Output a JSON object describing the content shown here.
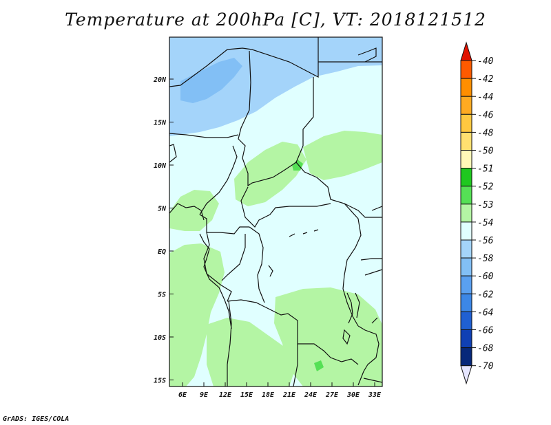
{
  "title": "Temperature at 200hPa [C], VT: 2018121512",
  "credit": "GrADS: IGES/COLA",
  "lat_labels": [
    "20N",
    "15N",
    "10N",
    "5N",
    "EQ",
    "5S",
    "10S",
    "15S"
  ],
  "lon_labels": [
    "6E",
    "9E",
    "12E",
    "15E",
    "18E",
    "21E",
    "24E",
    "27E",
    "30E",
    "33E"
  ],
  "colorbar": {
    "labels": [
      "-40",
      "-42",
      "-44",
      "-46",
      "-48",
      "-50",
      "-51",
      "-52",
      "-53",
      "-54",
      "-56",
      "-58",
      "-60",
      "-62",
      "-64",
      "-66",
      "-68",
      "-70"
    ],
    "colors": [
      "#ff1a00",
      "#ff5a00",
      "#ff8e00",
      "#ffaa22",
      "#ffc840",
      "#ffe070",
      "#fff9b8",
      "#1fc81f",
      "#55e055",
      "#b4f5a4",
      "#e0ffff",
      "#a4d4fa",
      "#82bff5",
      "#5aa0f0",
      "#3c87e6",
      "#2060d2",
      "#1040b4",
      "#07287a",
      "#0b0f5a"
    ],
    "top_arrow_color": "#e11200",
    "bottom_arrow_color": "#e6e6ff"
  },
  "fields": {
    "background": "#e0ffff",
    "cold_light": "#a4d4fa",
    "cold_mid": "#82bff5",
    "warm_light": "#b4f5a4",
    "warm_mid": "#55e055"
  }
}
